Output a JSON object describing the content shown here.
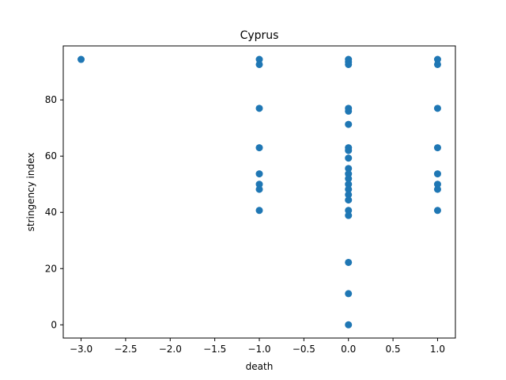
{
  "chart_data": {
    "type": "scatter",
    "title": "Cyprus",
    "xlabel": "death",
    "ylabel": "stringency index",
    "xlim": [
      -3.2,
      1.2
    ],
    "ylim": [
      -4.7,
      99.2
    ],
    "xticks": [
      -3.0,
      -2.5,
      -2.0,
      -1.5,
      -1.0,
      -0.5,
      0.0,
      0.5,
      1.0
    ],
    "xtick_labels": [
      "−3.0",
      "−2.5",
      "−2.0",
      "−1.5",
      "−1.0",
      "−0.5",
      "0.0",
      "0.5",
      "1.0"
    ],
    "yticks": [
      0,
      20,
      40,
      60,
      80
    ],
    "ytick_labels": [
      "0",
      "20",
      "40",
      "60",
      "80"
    ],
    "grid": false,
    "marker_color": "#1f77b4",
    "points": [
      {
        "x": -3.0,
        "y": 94.4
      },
      {
        "x": -1.0,
        "y": 94.4
      },
      {
        "x": -1.0,
        "y": 92.6
      },
      {
        "x": -1.0,
        "y": 77.0
      },
      {
        "x": -1.0,
        "y": 63.0
      },
      {
        "x": -1.0,
        "y": 53.7
      },
      {
        "x": -1.0,
        "y": 50.0
      },
      {
        "x": -1.0,
        "y": 48.2
      },
      {
        "x": -1.0,
        "y": 40.7
      },
      {
        "x": 0.0,
        "y": 94.4
      },
      {
        "x": 0.0,
        "y": 93.5
      },
      {
        "x": 0.0,
        "y": 92.6
      },
      {
        "x": 0.0,
        "y": 77.0
      },
      {
        "x": 0.0,
        "y": 76.0
      },
      {
        "x": 0.0,
        "y": 71.3
      },
      {
        "x": 0.0,
        "y": 63.0
      },
      {
        "x": 0.0,
        "y": 62.0
      },
      {
        "x": 0.0,
        "y": 59.3
      },
      {
        "x": 0.0,
        "y": 55.6
      },
      {
        "x": 0.0,
        "y": 53.7
      },
      {
        "x": 0.0,
        "y": 52.0
      },
      {
        "x": 0.0,
        "y": 50.0
      },
      {
        "x": 0.0,
        "y": 48.2
      },
      {
        "x": 0.0,
        "y": 46.3
      },
      {
        "x": 0.0,
        "y": 44.4
      },
      {
        "x": 0.0,
        "y": 40.7
      },
      {
        "x": 0.0,
        "y": 38.9
      },
      {
        "x": 0.0,
        "y": 22.2
      },
      {
        "x": 0.0,
        "y": 11.1
      },
      {
        "x": 0.0,
        "y": 0.0
      },
      {
        "x": 1.0,
        "y": 94.4
      },
      {
        "x": 1.0,
        "y": 92.6
      },
      {
        "x": 1.0,
        "y": 77.0
      },
      {
        "x": 1.0,
        "y": 63.0
      },
      {
        "x": 1.0,
        "y": 53.7
      },
      {
        "x": 1.0,
        "y": 50.0
      },
      {
        "x": 1.0,
        "y": 48.2
      },
      {
        "x": 1.0,
        "y": 40.7
      }
    ]
  }
}
